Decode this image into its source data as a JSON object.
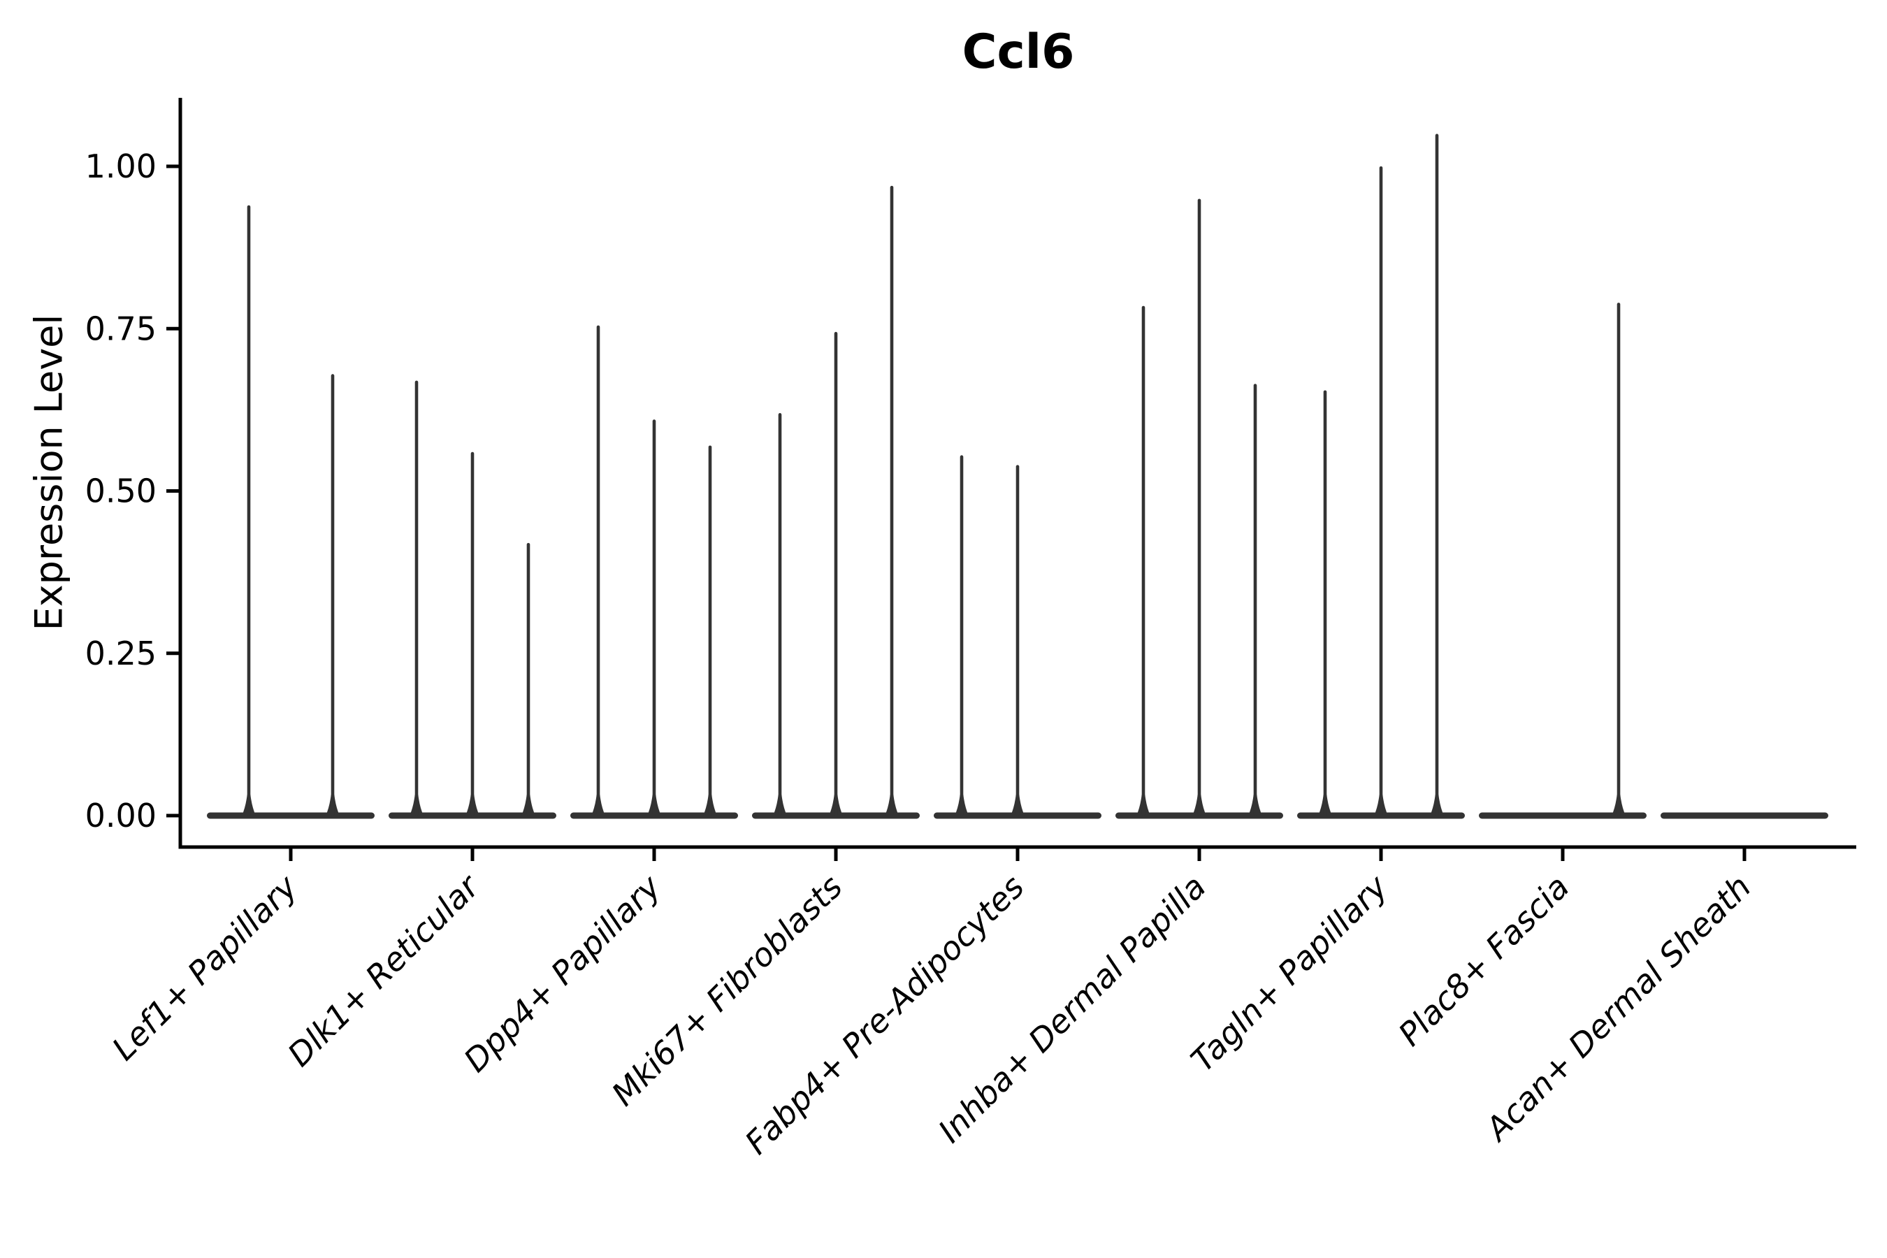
{
  "chart_data": {
    "type": "violin",
    "title": "Ccl6",
    "ylabel": "Expression Level",
    "xlabel": "",
    "legend": "none",
    "grid": false,
    "background": "#ffffff",
    "violin_color": "#333333",
    "axis_color": "#000000",
    "ylim": [
      -0.05,
      1.1
    ],
    "yticks": [
      0.0,
      0.25,
      0.5,
      0.75,
      1.0
    ],
    "ytick_labels": [
      "0.00",
      "0.25",
      "0.50",
      "0.75",
      "1.00"
    ],
    "categories": [
      "Lef1+ Papillary",
      "Dlk1+ Reticular",
      "Dpp4+ Papillary",
      "Mki67+ Fibroblasts",
      "Fabp4+ Pre-Adipocytes",
      "Inhba+ Dermal Papilla",
      "Tagln+ Papillary",
      "Plac8+ Fascia",
      "Acan+ Dermal Sheath"
    ],
    "groups": [
      {
        "category": "Lef1+ Papillary",
        "violin_peaks": [
          0.94,
          0.68
        ]
      },
      {
        "category": "Dlk1+ Reticular",
        "violin_peaks": [
          0.67,
          0.56,
          0.42
        ]
      },
      {
        "category": "Dpp4+ Papillary",
        "violin_peaks": [
          0.755,
          0.61,
          0.57
        ]
      },
      {
        "category": "Mki67+ Fibroblasts",
        "violin_peaks": [
          0.62,
          0.745,
          0.97
        ]
      },
      {
        "category": "Fabp4+ Pre-Adipocytes",
        "violin_peaks": [
          0.555,
          0.54,
          null
        ]
      },
      {
        "category": "Inhba+ Dermal Papilla",
        "violin_peaks": [
          0.785,
          0.95,
          0.665
        ]
      },
      {
        "category": "Tagln+ Papillary",
        "violin_peaks": [
          0.655,
          1.0,
          1.05
        ]
      },
      {
        "category": "Plac8+ Fascia",
        "violin_peaks": [
          null,
          null,
          0.79
        ]
      },
      {
        "category": "Acan+ Dermal Sheath",
        "violin_peaks": [
          null,
          null,
          null
        ]
      }
    ],
    "note": "Each violin is a flat density at 0 with a thin spike to its maximum expression value; null = flat violin (no expressing cells)."
  }
}
